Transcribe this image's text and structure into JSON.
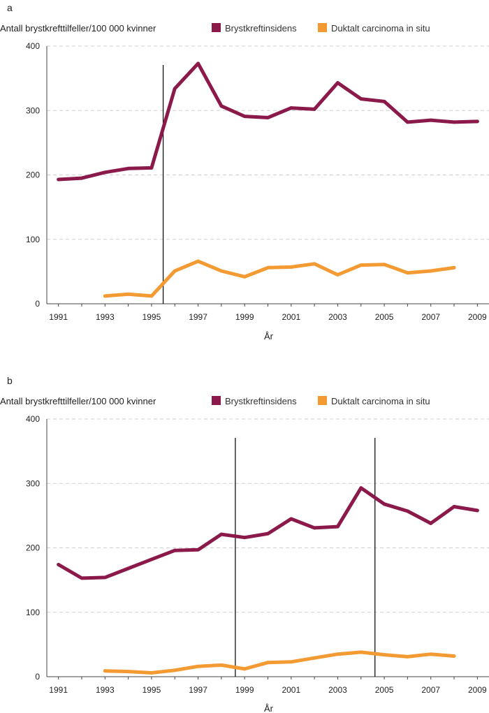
{
  "chart_data": [
    {
      "type": "line",
      "panel": "a",
      "ylabel": "Antall brystkrefttilfeller/100 000 kvinner",
      "xlabel": "År",
      "ylim": [
        0,
        400
      ],
      "yticks": [
        0,
        100,
        200,
        300,
        400
      ],
      "xlim": [
        1990.5,
        2009.5
      ],
      "xticks": [
        1991,
        1993,
        1995,
        1997,
        1999,
        2001,
        2003,
        2005,
        2007,
        2009
      ],
      "grid": true,
      "legend_position": "top-right",
      "vlines": [
        1995.5
      ],
      "series": [
        {
          "name": "Brystkreftinsidens",
          "color": "#8b1a4a",
          "x": [
            1991,
            1992,
            1993,
            1994,
            1995,
            1996,
            1997,
            1998,
            1999,
            2000,
            2001,
            2002,
            2003,
            2004,
            2005,
            2006,
            2007,
            2008,
            2009
          ],
          "values": [
            193,
            195,
            204,
            210,
            211,
            334,
            373,
            307,
            291,
            289,
            304,
            302,
            343,
            318,
            314,
            282,
            285,
            282,
            283
          ]
        },
        {
          "name": "Duktalt carcinoma in situ",
          "color": "#f39a32",
          "x": [
            1993,
            1994,
            1995,
            1996,
            1997,
            1998,
            1999,
            2000,
            2001,
            2002,
            2003,
            2004,
            2005,
            2006,
            2007,
            2008
          ],
          "values": [
            12,
            15,
            12,
            51,
            66,
            51,
            42,
            56,
            57,
            62,
            45,
            60,
            61,
            48,
            51,
            56
          ]
        }
      ]
    },
    {
      "type": "line",
      "panel": "b",
      "ylabel": "Antall brystkrefttilfeller/100 000 kvinner",
      "xlabel": "År",
      "ylim": [
        0,
        400
      ],
      "yticks": [
        0,
        100,
        200,
        300,
        400
      ],
      "xlim": [
        1990.5,
        2009.5
      ],
      "xticks": [
        1991,
        1993,
        1995,
        1997,
        1999,
        2001,
        2003,
        2005,
        2007,
        2009
      ],
      "grid": true,
      "legend_position": "top-right",
      "vlines": [
        1998.6,
        2004.6
      ],
      "series": [
        {
          "name": "Brystkreftinsidens",
          "color": "#8b1a4a",
          "x": [
            1991,
            1992,
            1993,
            1994,
            1995,
            1996,
            1997,
            1998,
            1999,
            2000,
            2001,
            2002,
            2003,
            2004,
            2005,
            2006,
            2007,
            2008,
            2009
          ],
          "values": [
            174,
            153,
            154,
            168,
            182,
            196,
            197,
            221,
            216,
            222,
            245,
            231,
            233,
            293,
            268,
            257,
            238,
            264,
            258
          ]
        },
        {
          "name": "Duktalt carcinoma in situ",
          "color": "#f39a32",
          "x": [
            1993,
            1994,
            1995,
            1996,
            1997,
            1998,
            1999,
            2000,
            2001,
            2002,
            2003,
            2004,
            2005,
            2006,
            2007,
            2008
          ],
          "values": [
            9,
            8,
            6,
            10,
            16,
            18,
            12,
            22,
            23,
            29,
            35,
            38,
            34,
            31,
            35,
            32
          ]
        }
      ]
    }
  ]
}
